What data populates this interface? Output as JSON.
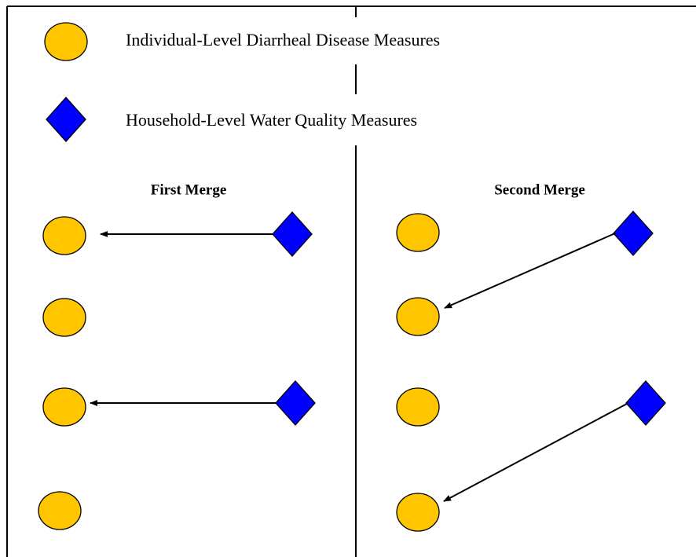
{
  "legend": {
    "items": [
      {
        "label": "Individual-Level Diarrheal Disease Measures"
      },
      {
        "label": "Household-Level Water Quality Measures"
      }
    ]
  },
  "panels": [
    {
      "title": "First Merge"
    },
    {
      "title": "Second Merge"
    }
  ]
}
